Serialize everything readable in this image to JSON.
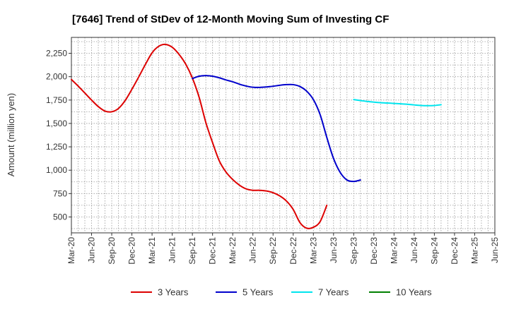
{
  "chart_data": {
    "type": "line",
    "title": "[7646]  Trend of StDev of 12-Month Moving Sum of Investing CF",
    "ylabel": "Amount (million yen)",
    "xlabel": "",
    "ylim": [
      330,
      2420
    ],
    "yticks": [
      500,
      750,
      1000,
      1250,
      1500,
      1750,
      2000,
      2250
    ],
    "ytick_labels": [
      "500",
      "750",
      "1,000",
      "1,250",
      "1,500",
      "1,750",
      "2,000",
      "2,250"
    ],
    "x_tick_labels": [
      "Mar-20",
      "Jun-20",
      "Sep-20",
      "Dec-20",
      "Mar-21",
      "Jun-21",
      "Sep-21",
      "Dec-21",
      "Mar-22",
      "Jun-22",
      "Sep-22",
      "Dec-22",
      "Mar-23",
      "Jun-23",
      "Sep-23",
      "Dec-23",
      "Mar-24",
      "Jun-24",
      "Sep-24",
      "Dec-24",
      "Mar-25",
      "Jun-25"
    ],
    "grid": true,
    "legend_position": "bottom",
    "series": [
      {
        "name": "3 Years",
        "color": "#dd0000",
        "start_index": 0,
        "values": [
          1970,
          1900,
          1825,
          1750,
          1680,
          1632,
          1625,
          1660,
          1745,
          1865,
          1995,
          2130,
          2255,
          2325,
          2345,
          2315,
          2240,
          2135,
          1985,
          1780,
          1510,
          1295,
          1100,
          980,
          900,
          840,
          800,
          785,
          785,
          778,
          760,
          725,
          670,
          580,
          440,
          380,
          390,
          450,
          625
        ]
      },
      {
        "name": "5 Years",
        "color": "#0000cc",
        "start_index": 18,
        "values": [
          1980,
          2005,
          2012,
          2005,
          1988,
          1965,
          1945,
          1920,
          1900,
          1887,
          1885,
          1890,
          1898,
          1908,
          1915,
          1915,
          1895,
          1845,
          1755,
          1595,
          1350,
          1125,
          975,
          895,
          880,
          895
        ]
      },
      {
        "name": "7 Years",
        "color": "#00e5ee",
        "start_index": 42,
        "values": [
          1755,
          1745,
          1735,
          1728,
          1722,
          1718,
          1714,
          1710,
          1705,
          1698,
          1692,
          1690,
          1692,
          1700
        ]
      },
      {
        "name": "10 Years",
        "color": "#008000",
        "start_index": 0,
        "values": []
      }
    ]
  }
}
